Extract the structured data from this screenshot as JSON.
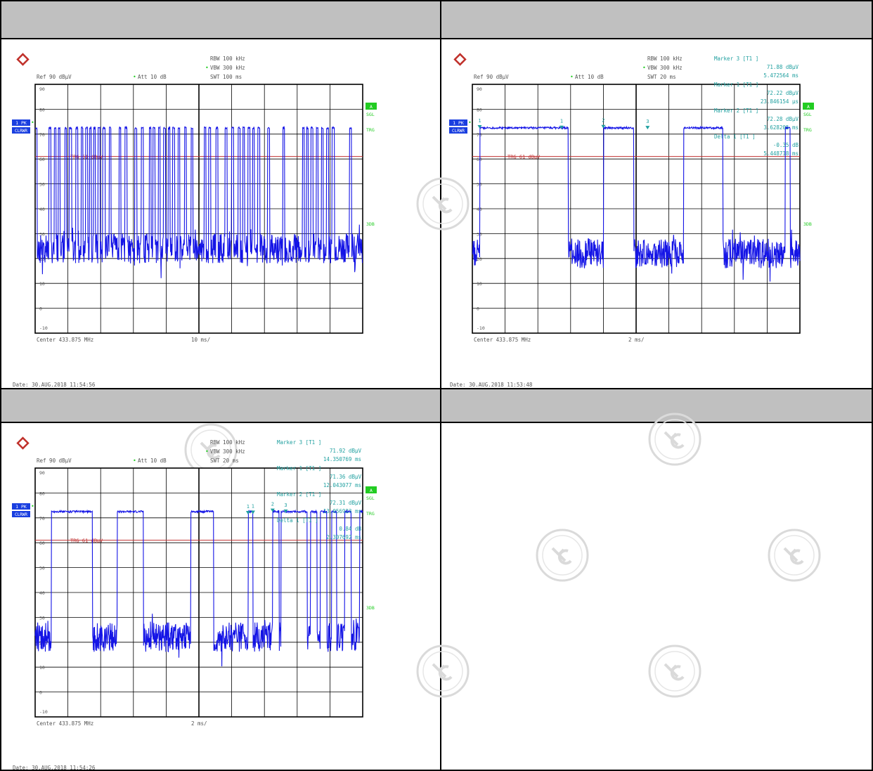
{
  "colors": {
    "trace": "#1414e6",
    "grid": "#000000",
    "marker": "#20a0a0",
    "trigger_line": "#c03030",
    "status_green": "#22cc22",
    "status_blue": "#1a3fe0",
    "header_gray": "#c0c0c0"
  },
  "panels": [
    {
      "params": {
        "rbw": "RBW  100 kHz",
        "vbw": "VBW  300 kHz",
        "swt": "SWT  100 ms",
        "ref": "Ref   90 dBµV",
        "att": "Att   10 dB"
      },
      "side": {
        "pk": "1 PK",
        "clrwr": "CLRWR",
        "a": "A",
        "sgl": "SGL",
        "trg": "TRG",
        "db3": "3DB"
      },
      "trig_label": "TRG  61 dBµV",
      "footer": {
        "center": "Center 433.875 MHz",
        "span": "10 ms/",
        "date": "Date: 30.AUG.2018  11:54:56"
      },
      "markers": []
    },
    {
      "params": {
        "rbw": "RBW  100 kHz",
        "vbw": "VBW  300 kHz",
        "swt": "SWT  20 ms",
        "ref": "Ref   90 dBµV",
        "att": "Att   10 dB"
      },
      "side": {
        "pk": "1 PK",
        "clrwr": "CLRWR",
        "a": "A",
        "sgl": "SGL",
        "trg": "TRG",
        "db3": "3DB"
      },
      "trig_label": "TRG  61 dBµV",
      "footer": {
        "center": "Center 433.875 MHz",
        "span": "2 ms/",
        "date": "Date: 30.AUG.2018  11:53:48"
      },
      "markers": [
        [
          "Marker 3 [T1 ]",
          "71.88 dBµV",
          "5.472564 ms"
        ],
        [
          "Marker 1 [T1 ]",
          "72.22 dBµV",
          "23.846154 µs"
        ],
        [
          "Marker 2 [T1 ]",
          "72.28 dBµV",
          "3.628205 ms"
        ],
        [
          "Delta 1 [T1 ]",
          "-0.35 dB",
          "5.448718 ms"
        ]
      ]
    },
    {
      "params": {
        "rbw": "RBW  100 kHz",
        "vbw": "VBW  300 kHz",
        "swt": "SWT  20 ms",
        "ref": "Ref   90 dBµV",
        "att": "Att   10 dB"
      },
      "side": {
        "pk": "1 PK",
        "clrwr": "CLRWR",
        "a": "A",
        "sgl": "SGL",
        "trg": "TRG",
        "db3": "3DB"
      },
      "trig_label": "TRG  61 dBµV",
      "footer": {
        "center": "Center 433.875 MHz",
        "span": "2 ms/",
        "date": "Date: 30.AUG.2018  11:54:26"
      },
      "markers": [
        [
          "Marker 3 [T1 ]",
          "71.92 dBµV",
          "14.350769 ms"
        ],
        [
          "Marker 1 [T1 ]",
          "71.36 dBµV",
          "12.043077 ms"
        ],
        [
          "Marker 2 [T1 ]",
          "72.31 dBµV",
          "13.056923 ms"
        ],
        [
          "Delta 1 [T1 ]",
          "0.84 dB",
          "2.307692 ms"
        ]
      ]
    }
  ],
  "chart_data": [
    {
      "type": "line",
      "ylabel": "dBµV",
      "xlabel": "10 ms/",
      "ylim": [
        -10,
        90
      ],
      "xlim": [
        0,
        100
      ],
      "y_ticks": [
        "90",
        "80",
        "70",
        "60",
        "50",
        "40",
        "30",
        "20",
        "10",
        "0",
        "-10"
      ],
      "trigger_level": 61,
      "pulses": [
        [
          0,
          0.6
        ],
        [
          4.2,
          4.8
        ],
        [
          5.8,
          6.4
        ],
        [
          7.0,
          7.6
        ],
        [
          9.0,
          9.6
        ],
        [
          10.4,
          11.2
        ],
        [
          12.4,
          13.0
        ],
        [
          14.0,
          14.6
        ],
        [
          15.4,
          16.0
        ],
        [
          16.6,
          17.2
        ],
        [
          17.8,
          18.4
        ],
        [
          19.2,
          19.8
        ],
        [
          20.6,
          21.4
        ],
        [
          22.6,
          23.2
        ],
        [
          25.6,
          26.2
        ],
        [
          27.4,
          28.0
        ],
        [
          30.4,
          31.0
        ],
        [
          32.4,
          33.0
        ],
        [
          34.8,
          35.4
        ],
        [
          36.0,
          36.6
        ],
        [
          37.6,
          38.2
        ],
        [
          39.2,
          39.8
        ],
        [
          40.6,
          41.2
        ],
        [
          42.0,
          42.6
        ],
        [
          43.6,
          44.2
        ],
        [
          45.6,
          46.2
        ],
        [
          47.6,
          48.2
        ],
        [
          51.6,
          52.2
        ],
        [
          53.0,
          53.6
        ],
        [
          55.2,
          55.8
        ],
        [
          58.0,
          58.6
        ],
        [
          60.0,
          60.6
        ],
        [
          62.0,
          62.6
        ],
        [
          63.4,
          64.0
        ],
        [
          65.0,
          65.6
        ],
        [
          66.4,
          67.0
        ],
        [
          68.0,
          68.6
        ],
        [
          71.0,
          71.6
        ],
        [
          75.6,
          76.2
        ],
        [
          81.6,
          82.2
        ],
        [
          82.8,
          83.4
        ],
        [
          84.2,
          84.8
        ],
        [
          85.8,
          86.4
        ],
        [
          87.4,
          88.0
        ],
        [
          89.0,
          89.6
        ],
        [
          90.6,
          91.4
        ],
        [
          96.0,
          96.6
        ]
      ],
      "high_level": 72.5,
      "noise_level": 24
    },
    {
      "type": "line",
      "ylabel": "dBµV",
      "xlabel": "2 ms/",
      "ylim": [
        -10,
        90
      ],
      "xlim": [
        0,
        20
      ],
      "y_ticks": [
        "90",
        "80",
        "70",
        "60",
        "50",
        "40",
        "30",
        "20",
        "10",
        "0",
        "-10"
      ],
      "trigger_level": 61,
      "pulses": [
        [
          0.45,
          5.85
        ],
        [
          8.0,
          9.85
        ],
        [
          12.9,
          15.3
        ],
        [
          19.1,
          19.4
        ],
        [
          20.7,
          21.0
        ],
        [
          21.5,
          23.4
        ],
        [
          23.8,
          26.8
        ],
        [
          27.9,
          28.2
        ],
        [
          28.9,
          29.3
        ],
        [
          30.2,
          30.6
        ],
        [
          31.4,
          32.3
        ]
      ],
      "markers": [
        {
          "id": "1",
          "x": 0.45,
          "y": 72.22
        },
        {
          "id": "1",
          "x": 5.45,
          "y": 72.0
        },
        {
          "id": "2",
          "x": 8.0,
          "y": 72.28
        },
        {
          "id": "3",
          "x": 10.7,
          "y": 71.88
        }
      ],
      "high_level": 72.5,
      "noise_level": 22
    },
    {
      "type": "line",
      "ylabel": "dBµV",
      "xlabel": "2 ms/",
      "ylim": [
        -10,
        90
      ],
      "xlim": [
        0,
        20
      ],
      "y_ticks": [
        "90",
        "80",
        "70",
        "60",
        "50",
        "40",
        "30",
        "20",
        "10",
        "0",
        "-10"
      ],
      "trigger_level": 61,
      "pulses": [
        [
          1.0,
          3.5
        ],
        [
          5.0,
          6.6
        ],
        [
          9.5,
          10.9
        ],
        [
          13.0,
          13.3
        ],
        [
          14.5,
          14.9
        ],
        [
          15.0,
          16.6
        ],
        [
          16.8,
          17.2
        ],
        [
          17.4,
          17.8
        ],
        [
          18.1,
          18.4
        ],
        [
          18.9,
          19.3
        ],
        [
          19.8,
          20.0
        ]
      ],
      "markers": [
        {
          "id": "1",
          "x": 13.0,
          "y": 71.36
        },
        {
          "id": "1",
          "x": 13.3,
          "y": 71.5
        },
        {
          "id": "2",
          "x": 14.5,
          "y": 72.31
        },
        {
          "id": "3",
          "x": 15.3,
          "y": 71.92
        }
      ],
      "high_level": 72.5,
      "noise_level": 22
    }
  ]
}
